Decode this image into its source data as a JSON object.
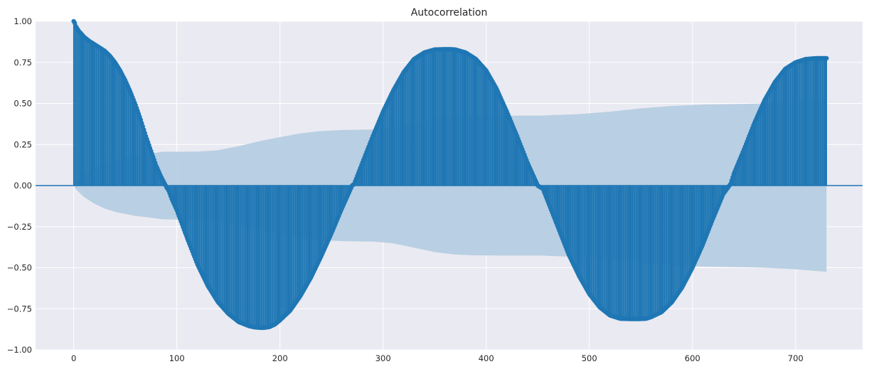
{
  "chart_data": {
    "type": "bar",
    "title": "Autocorrelation",
    "xlabel": "",
    "ylabel": "",
    "xlim": [
      -37,
      765
    ],
    "ylim": [
      -1.0,
      1.0
    ],
    "x_ticks": [
      0,
      100,
      200,
      300,
      400,
      500,
      600,
      700
    ],
    "x_tick_labels": [
      "0",
      "100",
      "200",
      "300",
      "400",
      "500",
      "600",
      "700"
    ],
    "y_ticks": [
      -1.0,
      -0.75,
      -0.5,
      -0.25,
      0.0,
      0.25,
      0.5,
      0.75,
      1.0
    ],
    "y_tick_labels": [
      "−1.00",
      "−0.75",
      "−0.50",
      "−0.25",
      "0.00",
      "0.25",
      "0.50",
      "0.75",
      "1.00"
    ],
    "grid": true,
    "background_color": "#eaeaf2",
    "stem_color": "#1f77b4",
    "band_color": "#b6cde1",
    "lags": {
      "start": 0,
      "end": 730,
      "step": 1
    },
    "series": [
      {
        "values_at_lags": {
          "x": [
            0,
            1,
            2,
            3,
            4,
            5,
            8,
            10,
            15,
            20,
            25,
            30,
            35,
            40,
            45,
            50,
            55,
            60,
            65,
            70,
            75,
            80,
            85,
            90,
            92,
            95,
            100,
            110,
            120,
            130,
            140,
            150,
            160,
            170,
            175,
            180,
            183,
            185,
            190,
            195,
            200,
            210,
            220,
            230,
            240,
            250,
            260,
            270,
            272,
            280,
            290,
            300,
            310,
            320,
            330,
            340,
            350,
            360,
            365,
            370,
            380,
            390,
            400,
            410,
            420,
            430,
            440,
            450,
            455,
            460,
            470,
            480,
            490,
            500,
            510,
            520,
            530,
            540,
            548,
            555,
            560,
            570,
            580,
            590,
            600,
            610,
            620,
            630,
            637,
            640,
            650,
            660,
            670,
            680,
            690,
            700,
            710,
            720,
            730
          ],
          "y": [
            1.0,
            0.99,
            0.97,
            0.96,
            0.95,
            0.94,
            0.92,
            0.905,
            0.88,
            0.86,
            0.84,
            0.82,
            0.79,
            0.75,
            0.7,
            0.64,
            0.57,
            0.49,
            0.4,
            0.3,
            0.21,
            0.12,
            0.05,
            -0.01,
            -0.03,
            -0.08,
            -0.15,
            -0.32,
            -0.48,
            -0.61,
            -0.71,
            -0.78,
            -0.83,
            -0.855,
            -0.862,
            -0.865,
            -0.866,
            -0.865,
            -0.86,
            -0.845,
            -0.82,
            -0.76,
            -0.67,
            -0.56,
            -0.43,
            -0.29,
            -0.14,
            0.0,
            0.01,
            0.14,
            0.3,
            0.45,
            0.58,
            0.69,
            0.77,
            0.81,
            0.828,
            0.83,
            0.83,
            0.828,
            0.81,
            0.77,
            0.7,
            0.59,
            0.45,
            0.3,
            0.14,
            0.0,
            -0.02,
            -0.1,
            -0.26,
            -0.42,
            -0.55,
            -0.66,
            -0.74,
            -0.79,
            -0.81,
            -0.812,
            -0.812,
            -0.81,
            -0.8,
            -0.77,
            -0.71,
            -0.62,
            -0.5,
            -0.36,
            -0.2,
            -0.05,
            0.01,
            0.07,
            0.22,
            0.38,
            0.52,
            0.63,
            0.71,
            0.75,
            0.77,
            0.775,
            0.775
          ]
        },
        "confidence_band": {
          "x": [
            0,
            2,
            5,
            10,
            20,
            30,
            40,
            60,
            80,
            85,
            90,
            100,
            120,
            140,
            160,
            180,
            200,
            220,
            240,
            260,
            275,
            290,
            310,
            330,
            350,
            370,
            390,
            420,
            450,
            455,
            460,
            490,
            520,
            550,
            580,
            610,
            640,
            670,
            700,
            730
          ],
          "upper": [
            0.0,
            0.02,
            0.04,
            0.07,
            0.11,
            0.14,
            0.16,
            0.185,
            0.2,
            0.205,
            0.206,
            0.206,
            0.207,
            0.215,
            0.24,
            0.27,
            0.295,
            0.318,
            0.332,
            0.338,
            0.34,
            0.341,
            0.352,
            0.378,
            0.405,
            0.42,
            0.425,
            0.426,
            0.426,
            0.426,
            0.428,
            0.435,
            0.45,
            0.47,
            0.485,
            0.493,
            0.496,
            0.5,
            0.51,
            0.525
          ]
        }
      }
    ]
  }
}
